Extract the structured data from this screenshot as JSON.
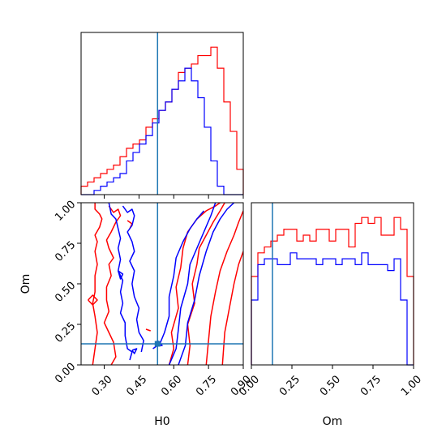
{
  "chart_data": {
    "type": "corner",
    "colors": {
      "series_a": "#ff0000",
      "series_b": "#0000ff",
      "truth": "#1f77b4"
    },
    "parameters": [
      "H0",
      "Om"
    ],
    "truth": {
      "H0": 0.53,
      "Om": 0.13
    },
    "panels": [
      {
        "id": "hist-H0",
        "type": "histogram",
        "x_param": "H0",
        "xlim": [
          0.2,
          0.9
        ],
        "bin_edges": [
          0.2,
          0.228,
          0.256,
          0.284,
          0.312,
          0.34,
          0.368,
          0.396,
          0.424,
          0.452,
          0.48,
          0.508,
          0.536,
          0.564,
          0.592,
          0.62,
          0.648,
          0.676,
          0.704,
          0.732,
          0.76,
          0.788,
          0.816,
          0.844,
          0.872,
          0.9
        ],
        "series": [
          {
            "color_key": "series_a",
            "counts": [
              2,
              3,
              4,
              5,
              6,
              7,
              9,
              11,
              12,
              13,
              16,
              18,
              20,
              22,
              25,
              29,
              30,
              31,
              33,
              33,
              35,
              30,
              22,
              15,
              6
            ]
          },
          {
            "color_key": "series_b",
            "counts": [
              0,
              0,
              1,
              2,
              3,
              4,
              5,
              8,
              10,
              12,
              14,
              17,
              20,
              22,
              25,
              27,
              30,
              27,
              23,
              16,
              8,
              2,
              0,
              0,
              0
            ]
          }
        ]
      },
      {
        "id": "hist-Om",
        "type": "histogram",
        "x_param": "Om",
        "xlim": [
          0.0,
          1.0
        ],
        "bin_edges": [
          0.0,
          0.04,
          0.08,
          0.12,
          0.16,
          0.2,
          0.24,
          0.28,
          0.32,
          0.36,
          0.4,
          0.44,
          0.48,
          0.52,
          0.56,
          0.6,
          0.64,
          0.68,
          0.72,
          0.76,
          0.8,
          0.84,
          0.88,
          0.92,
          0.96,
          1.0
        ],
        "series": [
          {
            "color_key": "series_a",
            "counts": [
              15,
              19,
              20,
              21,
              22,
              23,
              23,
              21,
              22,
              21,
              23,
              23,
              21,
              23,
              23,
              20,
              24,
              25,
              24,
              25,
              22,
              22,
              25,
              23,
              15
            ]
          },
          {
            "color_key": "series_b",
            "counts": [
              11,
              17,
              18,
              18,
              17,
              17,
              19,
              18,
              18,
              18,
              17,
              18,
              18,
              17,
              18,
              18,
              17,
              19,
              17,
              17,
              17,
              16,
              18,
              11,
              0
            ]
          }
        ]
      },
      {
        "id": "contour-H0-Om",
        "type": "contour",
        "x_param": "H0",
        "y_param": "Om",
        "xlim": [
          0.2,
          0.9
        ],
        "ylim": [
          0.0,
          1.0
        ],
        "lines": [
          {
            "color_key": "series_a",
            "points": [
              [
                0.26,
                1.0
              ],
              [
                0.26,
                0.96
              ],
              [
                0.28,
                0.93
              ],
              [
                0.29,
                0.9
              ],
              [
                0.28,
                0.85
              ],
              [
                0.26,
                0.8
              ],
              [
                0.27,
                0.76
              ],
              [
                0.26,
                0.7
              ],
              [
                0.27,
                0.62
              ],
              [
                0.26,
                0.55
              ],
              [
                0.26,
                0.45
              ],
              [
                0.25,
                0.38
              ],
              [
                0.26,
                0.3
              ],
              [
                0.27,
                0.2
              ],
              [
                0.26,
                0.1
              ],
              [
                0.25,
                0.0
              ]
            ]
          },
          {
            "color_key": "series_a",
            "points": [
              [
                0.32,
                0.98
              ],
              [
                0.34,
                0.94
              ],
              [
                0.36,
                0.96
              ],
              [
                0.37,
                0.92
              ],
              [
                0.35,
                0.88
              ],
              [
                0.33,
                0.82
              ],
              [
                0.31,
                0.77
              ],
              [
                0.32,
                0.72
              ],
              [
                0.34,
                0.66
              ],
              [
                0.32,
                0.62
              ],
              [
                0.33,
                0.55
              ],
              [
                0.31,
                0.48
              ],
              [
                0.31,
                0.4
              ],
              [
                0.32,
                0.33
              ],
              [
                0.3,
                0.26
              ],
              [
                0.32,
                0.2
              ],
              [
                0.34,
                0.14
              ],
              [
                0.35,
                0.05
              ],
              [
                0.33,
                0.0
              ]
            ]
          },
          {
            "color_key": "series_a",
            "points": [
              [
                0.23,
                0.4
              ],
              [
                0.25,
                0.37
              ],
              [
                0.27,
                0.4
              ],
              [
                0.25,
                0.43
              ],
              [
                0.23,
                0.4
              ]
            ]
          },
          {
            "color_key": "series_a",
            "points": [
              [
                0.4,
                0.89
              ],
              [
                0.42,
                0.87
              ],
              [
                0.41,
                0.84
              ]
            ]
          },
          {
            "color_key": "series_a",
            "points": [
              [
                0.48,
                0.22
              ],
              [
                0.5,
                0.21
              ]
            ]
          },
          {
            "color_key": "series_a",
            "points": [
              [
                0.58,
                0.0
              ],
              [
                0.6,
                0.1
              ],
              [
                0.59,
                0.2
              ],
              [
                0.62,
                0.35
              ],
              [
                0.61,
                0.48
              ],
              [
                0.63,
                0.6
              ],
              [
                0.64,
                0.72
              ],
              [
                0.66,
                0.82
              ],
              [
                0.7,
                0.9
              ],
              [
                0.74,
                0.95
              ],
              [
                0.78,
                0.98
              ],
              [
                0.8,
                1.0
              ]
            ]
          },
          {
            "color_key": "series_a",
            "points": [
              [
                0.66,
                0.0
              ],
              [
                0.67,
                0.12
              ],
              [
                0.66,
                0.25
              ],
              [
                0.69,
                0.38
              ],
              [
                0.68,
                0.5
              ],
              [
                0.7,
                0.62
              ],
              [
                0.71,
                0.72
              ],
              [
                0.74,
                0.8
              ],
              [
                0.77,
                0.88
              ],
              [
                0.8,
                0.95
              ],
              [
                0.82,
                1.0
              ]
            ]
          },
          {
            "color_key": "series_a",
            "points": [
              [
                0.74,
                0.0
              ],
              [
                0.75,
                0.15
              ],
              [
                0.76,
                0.3
              ],
              [
                0.78,
                0.45
              ],
              [
                0.8,
                0.58
              ],
              [
                0.83,
                0.7
              ],
              [
                0.86,
                0.8
              ],
              [
                0.88,
                0.88
              ],
              [
                0.9,
                0.95
              ]
            ]
          },
          {
            "color_key": "series_a",
            "points": [
              [
                0.81,
                0.0
              ],
              [
                0.82,
                0.2
              ],
              [
                0.84,
                0.35
              ],
              [
                0.86,
                0.5
              ],
              [
                0.88,
                0.62
              ],
              [
                0.9,
                0.7
              ]
            ]
          },
          {
            "color_key": "series_b",
            "points": [
              [
                0.32,
                1.0
              ],
              [
                0.33,
                0.93
              ],
              [
                0.35,
                0.9
              ],
              [
                0.36,
                0.84
              ],
              [
                0.37,
                0.78
              ],
              [
                0.36,
                0.72
              ],
              [
                0.37,
                0.65
              ],
              [
                0.36,
                0.58
              ],
              [
                0.38,
                0.52
              ],
              [
                0.37,
                0.45
              ],
              [
                0.38,
                0.38
              ],
              [
                0.37,
                0.32
              ],
              [
                0.39,
                0.26
              ],
              [
                0.39,
                0.18
              ],
              [
                0.4,
                0.1
              ],
              [
                0.42,
                0.08
              ],
              [
                0.41,
                0.03
              ]
            ]
          },
          {
            "color_key": "series_b",
            "points": [
              [
                0.38,
                0.98
              ],
              [
                0.4,
                0.94
              ],
              [
                0.42,
                0.96
              ],
              [
                0.43,
                0.92
              ],
              [
                0.42,
                0.86
              ],
              [
                0.4,
                0.82
              ],
              [
                0.42,
                0.76
              ],
              [
                0.43,
                0.7
              ],
              [
                0.41,
                0.64
              ],
              [
                0.43,
                0.58
              ],
              [
                0.42,
                0.5
              ],
              [
                0.43,
                0.42
              ],
              [
                0.45,
                0.35
              ],
              [
                0.44,
                0.28
              ],
              [
                0.45,
                0.2
              ],
              [
                0.47,
                0.15
              ],
              [
                0.46,
                0.08
              ]
            ]
          },
          {
            "color_key": "series_b",
            "points": [
              [
                0.36,
                0.58
              ],
              [
                0.38,
                0.56
              ],
              [
                0.37,
                0.53
              ],
              [
                0.36,
                0.58
              ]
            ]
          },
          {
            "color_key": "series_b",
            "points": [
              [
                0.42,
                0.09
              ],
              [
                0.44,
                0.1
              ],
              [
                0.43,
                0.07
              ],
              [
                0.42,
                0.09
              ]
            ]
          },
          {
            "color_key": "series_b",
            "points": [
              [
                0.51,
                0.1
              ],
              [
                0.54,
                0.13
              ],
              [
                0.56,
                0.2
              ],
              [
                0.58,
                0.3
              ],
              [
                0.58,
                0.42
              ],
              [
                0.6,
                0.55
              ],
              [
                0.61,
                0.66
              ],
              [
                0.64,
                0.76
              ],
              [
                0.67,
                0.84
              ],
              [
                0.7,
                0.9
              ],
              [
                0.73,
                0.95
              ]
            ]
          },
          {
            "color_key": "series_b",
            "points": [
              [
                0.52,
                0.12
              ],
              [
                0.53,
                0.15
              ],
              [
                0.55,
                0.12
              ],
              [
                0.52,
                0.12
              ]
            ]
          },
          {
            "color_key": "series_b",
            "points": [
              [
                0.58,
                0.0
              ],
              [
                0.61,
                0.1
              ],
              [
                0.62,
                0.22
              ],
              [
                0.63,
                0.35
              ],
              [
                0.66,
                0.5
              ],
              [
                0.67,
                0.62
              ],
              [
                0.7,
                0.72
              ],
              [
                0.73,
                0.82
              ],
              [
                0.76,
                0.92
              ],
              [
                0.78,
                1.0
              ]
            ]
          },
          {
            "color_key": "series_b",
            "points": [
              [
                0.62,
                0.0
              ],
              [
                0.65,
                0.12
              ],
              [
                0.66,
                0.26
              ],
              [
                0.69,
                0.4
              ],
              [
                0.71,
                0.55
              ],
              [
                0.74,
                0.7
              ],
              [
                0.77,
                0.82
              ],
              [
                0.8,
                0.9
              ],
              [
                0.83,
                0.96
              ],
              [
                0.86,
                1.0
              ]
            ]
          }
        ]
      }
    ],
    "axes": {
      "contour_x": {
        "label": "H0",
        "ticks": [
          0.3,
          0.45,
          0.6,
          0.75,
          0.9
        ],
        "tick_labels": [
          "0.30",
          "0.45",
          "0.60",
          "0.75",
          "0.90"
        ]
      },
      "contour_y": {
        "label": "Om",
        "ticks": [
          0.0,
          0.25,
          0.5,
          0.75,
          1.0
        ],
        "tick_labels": [
          "0.00",
          "0.25",
          "0.50",
          "0.75",
          "1.00"
        ]
      },
      "hist_Om_x": {
        "label": "Om",
        "ticks": [
          0.0,
          0.25,
          0.5,
          0.75,
          1.0
        ],
        "tick_labels": [
          "0.00",
          "0.25",
          "0.50",
          "0.75",
          "1.00"
        ]
      }
    }
  }
}
